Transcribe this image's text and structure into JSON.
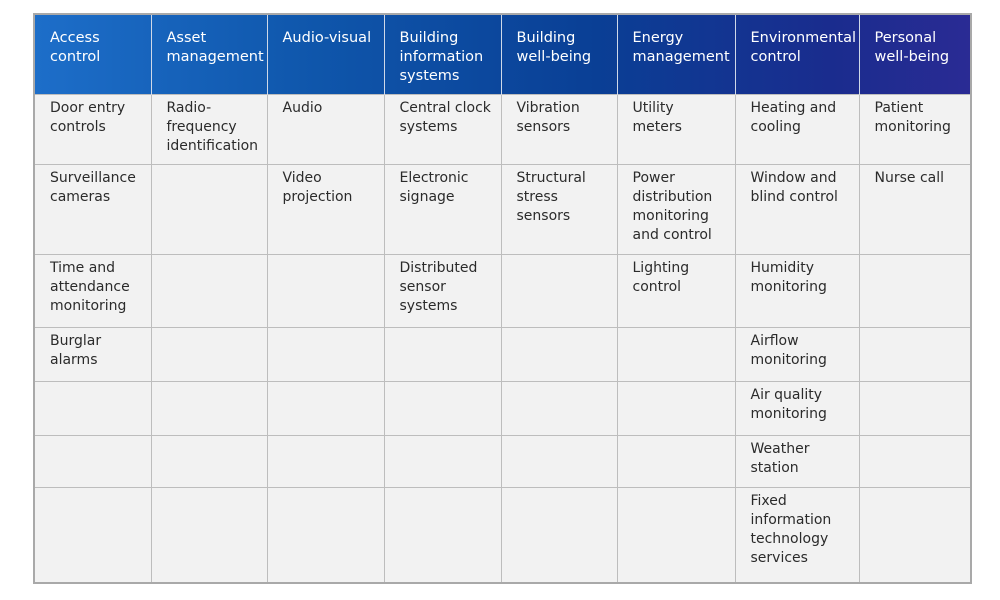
{
  "table": {
    "headers": [
      "Access control",
      "Asset management",
      "Audio-visual",
      "Building information systems",
      "Building well-being",
      "Energy management",
      "Environmental control",
      "Personal well-being"
    ],
    "rows": [
      [
        "Door entry controls",
        "Radio-frequency identification",
        "Audio",
        "Central clock systems",
        "Vibration sensors",
        "Utility meters",
        "Heating and cooling",
        "Patient monitoring"
      ],
      [
        "Surveillance cameras",
        "",
        "Video projection",
        "Electronic signage",
        "Structural stress sensors",
        "Power distribution monitoring and control",
        "Window and blind control",
        "Nurse call"
      ],
      [
        "Time and attendance monitoring",
        "",
        "",
        "Distributed sensor systems",
        "",
        "Lighting control",
        "Humidity monitoring",
        ""
      ],
      [
        "Burglar alarms",
        "",
        "",
        "",
        "",
        "",
        "Airflow monitoring",
        ""
      ],
      [
        "",
        "",
        "",
        "",
        "",
        "",
        "Air quality monitoring",
        ""
      ],
      [
        "",
        "",
        "",
        "",
        "",
        "",
        "Weather station",
        ""
      ],
      [
        "",
        "",
        "",
        "",
        "",
        "",
        "Fixed information technology services",
        ""
      ]
    ]
  },
  "colors": {
    "header_gradient_start": "#1d6ec9",
    "header_gradient_end": "#2a2b94",
    "cell_background": "#f2f2f2",
    "border": "#bdbdbd"
  }
}
